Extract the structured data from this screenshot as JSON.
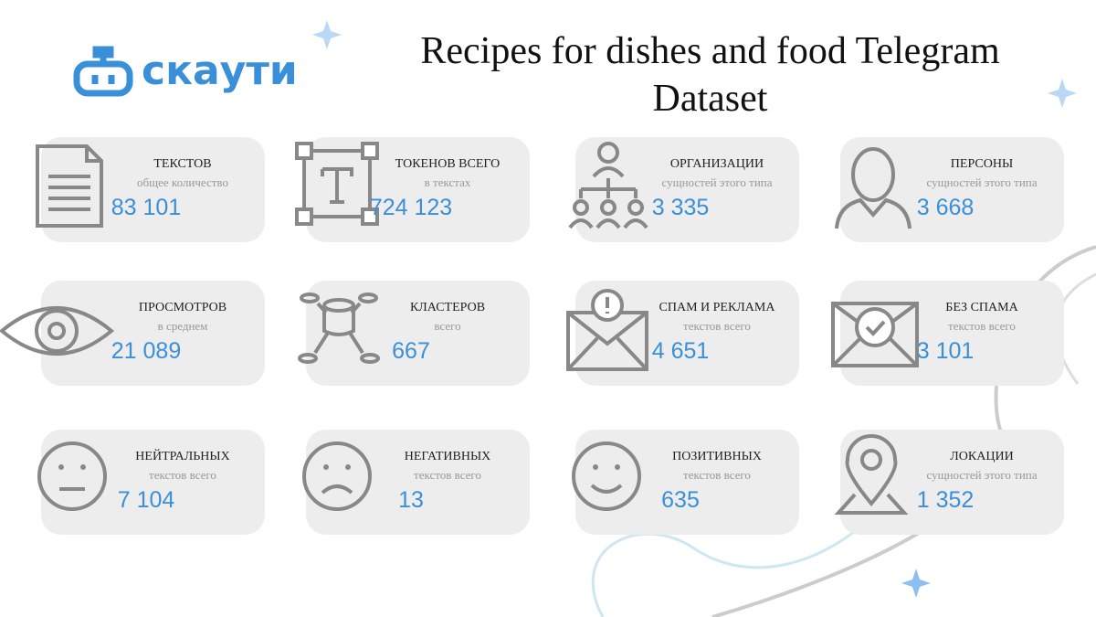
{
  "header": {
    "logo": "скаути",
    "title": "Recipes for dishes and food Telegram Dataset"
  },
  "cards": [
    {
      "label": "ТЕКСТОВ",
      "sublabel": "общее количество",
      "value": "83 101"
    },
    {
      "label": "ТОКЕНОВ ВСЕГО",
      "sublabel": "в текстах",
      "value": "724 123"
    },
    {
      "label": "ОРГАНИЗАЦИИ",
      "sublabel": "сущностей этого типа",
      "value": "3 335"
    },
    {
      "label": "ПЕРСОНЫ",
      "sublabel": "сущностей этого типа",
      "value": "3 668"
    },
    {
      "label": "ПРОСМОТРОВ",
      "sublabel": "в среднем",
      "value": "21 089"
    },
    {
      "label": "КЛАСТЕРОВ",
      "sublabel": "всего",
      "value": "667"
    },
    {
      "label": "СПАМ И РЕКЛАМА",
      "sublabel": "текстов всего",
      "value": "4 651"
    },
    {
      "label": "БЕЗ СПАМА",
      "sublabel": "текстов всего",
      "value": "3 101"
    },
    {
      "label": "НЕЙТРАЛЬНЫХ",
      "sublabel": "текстов  всего",
      "value": "7 104"
    },
    {
      "label": "НЕГАТИВНЫХ",
      "sublabel": "текстов всего",
      "value": "13"
    },
    {
      "label": "ПОЗИТИВНЫХ",
      "sublabel": "текстов всего",
      "value": "635"
    },
    {
      "label": "ЛОКАЦИИ",
      "sublabel": "сущностей этого типа",
      "value": "1 352"
    }
  ]
}
